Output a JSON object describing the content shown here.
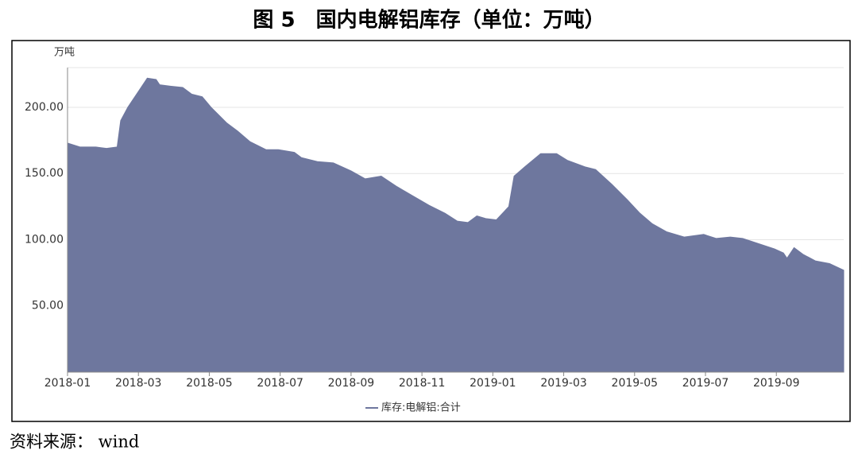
{
  "chart_data": {
    "type": "area",
    "title": "图 5　国内电解铝库存（单位：万吨）",
    "y_axis_label": "万吨",
    "source": "资料来源： wind",
    "color": "#6e779e",
    "grid": true,
    "legend": "bottom",
    "xlim": [
      0,
      21.9
    ],
    "xticks": [
      {
        "value": 0,
        "label": "2018-01"
      },
      {
        "value": 2,
        "label": "2018-03"
      },
      {
        "value": 4,
        "label": "2018-05"
      },
      {
        "value": 6,
        "label": "2018-07"
      },
      {
        "value": 8,
        "label": "2018-09"
      },
      {
        "value": 10,
        "label": "2018-11"
      },
      {
        "value": 12,
        "label": "2019-01"
      },
      {
        "value": 14,
        "label": "2019-03"
      },
      {
        "value": 16,
        "label": "2019-05"
      },
      {
        "value": 18,
        "label": "2019-07"
      },
      {
        "value": 20,
        "label": "2019-09"
      }
    ],
    "ylim": [
      0,
      230
    ],
    "yticks": [
      {
        "value": 50,
        "label": "50.00"
      },
      {
        "value": 100,
        "label": "100.00"
      },
      {
        "value": 150,
        "label": "150.00"
      },
      {
        "value": 200,
        "label": "200.00"
      }
    ],
    "series": [
      {
        "name": "库存:电解铝:合计",
        "color": "#6e779e",
        "x": [
          0,
          0.35,
          0.8,
          1.1,
          1.4,
          1.5,
          1.7,
          2.0,
          2.25,
          2.5,
          2.6,
          2.9,
          3.25,
          3.5,
          3.8,
          4.05,
          4.5,
          4.8,
          5.15,
          5.6,
          5.95,
          6.4,
          6.6,
          7.05,
          7.5,
          8.0,
          8.4,
          8.85,
          9.3,
          9.75,
          10.2,
          10.65,
          11.0,
          11.3,
          11.55,
          11.8,
          12.1,
          12.45,
          12.6,
          12.9,
          13.35,
          13.55,
          13.8,
          14.1,
          14.6,
          14.9,
          15.35,
          15.8,
          16.15,
          16.5,
          16.9,
          17.4,
          17.95,
          18.3,
          18.7,
          19.05,
          19.5,
          19.95,
          20.2,
          20.3,
          20.5,
          20.75,
          21.1,
          21.5,
          21.9
        ],
        "values": [
          173,
          170,
          170,
          169,
          170,
          190,
          200,
          212,
          222,
          221,
          217,
          216,
          215,
          210,
          208,
          200,
          188,
          182,
          174,
          168,
          168,
          166,
          162,
          159,
          158,
          152,
          146,
          148,
          140,
          133,
          126,
          120,
          114,
          113,
          118,
          116,
          115,
          125,
          148,
          155,
          165,
          165,
          165,
          160,
          155,
          153,
          142,
          130,
          120,
          112,
          106,
          102,
          104,
          101,
          102,
          101,
          97,
          93,
          90,
          86,
          94,
          89,
          84,
          82,
          77
        ]
      }
    ]
  }
}
